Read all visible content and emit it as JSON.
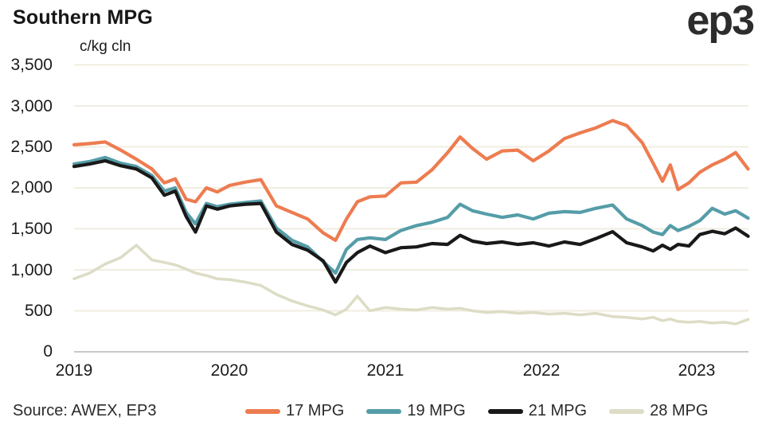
{
  "header": {
    "title": "Southern MPG",
    "logo": "ep3"
  },
  "footer": {
    "source": "Source: AWEX, EP3"
  },
  "chart_data": {
    "type": "line",
    "title": "Southern MPG",
    "unit_label": "c/kg cln",
    "xlabel": "",
    "ylabel": "c/kg cln",
    "xlim": [
      2019.0,
      2023.45
    ],
    "ylim": [
      0,
      3500
    ],
    "grid": "horizontal",
    "legend_position": "bottom",
    "ytick_values": [
      3500,
      3000,
      2500,
      2000,
      1500,
      1000,
      500,
      0
    ],
    "ytick_labels": [
      "3,500",
      "3,000",
      "2,500",
      "2,000",
      "1,500",
      "1,000",
      "500",
      "0"
    ],
    "xtick_values": [
      2019,
      2020,
      2021,
      2022,
      2023
    ],
    "xtick_labels": [
      "2019",
      "2020",
      "2021",
      "2022",
      "2023"
    ],
    "x": [
      2019.0,
      2019.1,
      2019.2,
      2019.3,
      2019.4,
      2019.5,
      2019.58,
      2019.65,
      2019.72,
      2019.78,
      2019.85,
      2019.92,
      2020.0,
      2020.1,
      2020.2,
      2020.3,
      2020.4,
      2020.5,
      2020.6,
      2020.68,
      2020.75,
      2020.82,
      2020.9,
      2021.0,
      2021.1,
      2021.2,
      2021.3,
      2021.4,
      2021.48,
      2021.56,
      2021.65,
      2021.75,
      2021.85,
      2021.95,
      2022.05,
      2022.15,
      2022.25,
      2022.35,
      2022.46,
      2022.55,
      2022.65,
      2022.72,
      2022.78,
      2022.83,
      2022.88,
      2022.95,
      2023.02,
      2023.1,
      2023.18,
      2023.25,
      2023.33
    ],
    "series": [
      {
        "name": "17 MPG",
        "color": "#ED7C50",
        "values": [
          2525,
          2540,
          2560,
          2460,
          2350,
          2230,
          2060,
          2110,
          1860,
          1830,
          2000,
          1950,
          2030,
          2070,
          2100,
          1780,
          1700,
          1620,
          1450,
          1360,
          1620,
          1830,
          1890,
          1900,
          2060,
          2070,
          2220,
          2430,
          2620,
          2480,
          2350,
          2450,
          2460,
          2330,
          2450,
          2600,
          2670,
          2730,
          2820,
          2760,
          2550,
          2300,
          2080,
          2280,
          1980,
          2060,
          2190,
          2280,
          2350,
          2430,
          2230
        ]
      },
      {
        "name": "19 MPG",
        "color": "#559DA8",
        "values": [
          2290,
          2320,
          2370,
          2300,
          2260,
          2150,
          1960,
          2000,
          1700,
          1560,
          1810,
          1770,
          1800,
          1820,
          1840,
          1510,
          1360,
          1280,
          1100,
          960,
          1250,
          1370,
          1390,
          1370,
          1480,
          1540,
          1580,
          1640,
          1800,
          1720,
          1680,
          1640,
          1670,
          1620,
          1690,
          1710,
          1700,
          1750,
          1790,
          1620,
          1540,
          1460,
          1430,
          1540,
          1480,
          1530,
          1600,
          1750,
          1680,
          1720,
          1630
        ]
      },
      {
        "name": "21 MPG",
        "color": "#191919",
        "values": [
          2260,
          2290,
          2330,
          2270,
          2230,
          2120,
          1910,
          1960,
          1650,
          1460,
          1780,
          1740,
          1780,
          1800,
          1810,
          1460,
          1310,
          1240,
          1110,
          850,
          1090,
          1210,
          1290,
          1210,
          1270,
          1280,
          1320,
          1310,
          1420,
          1350,
          1320,
          1340,
          1310,
          1330,
          1290,
          1340,
          1310,
          1380,
          1465,
          1330,
          1280,
          1230,
          1300,
          1250,
          1310,
          1290,
          1430,
          1470,
          1440,
          1510,
          1410
        ]
      },
      {
        "name": "28 MPG",
        "color": "#DDDCC5",
        "values": [
          890,
          960,
          1070,
          1150,
          1300,
          1120,
          1090,
          1060,
          1010,
          960,
          930,
          890,
          880,
          850,
          810,
          700,
          620,
          560,
          510,
          450,
          520,
          680,
          500,
          540,
          520,
          510,
          540,
          520,
          530,
          500,
          480,
          490,
          470,
          480,
          460,
          470,
          450,
          470,
          430,
          420,
          400,
          420,
          380,
          400,
          370,
          360,
          370,
          350,
          360,
          340,
          395
        ]
      }
    ],
    "colors": {
      "gridline": "#F0EEE1",
      "axis_line": "#C8C8C8",
      "text": "#1B1B1B"
    }
  }
}
